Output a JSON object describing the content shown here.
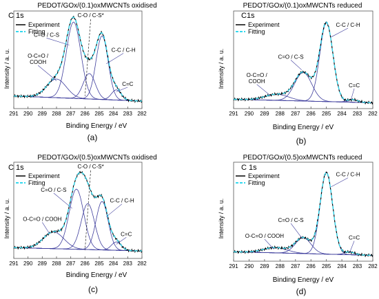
{
  "panels": [
    {
      "letter": "(a)",
      "title": "PEDOT/GOx/(0.1)oxMWCNTs oxidised",
      "region": "C 1s",
      "chart_data": {
        "type": "line",
        "xlabel": "Binding Energy / eV",
        "ylabel": "Intensity / a. u.",
        "xlim": [
          291,
          282
        ],
        "x_reversed": true,
        "xticks": [
          "291",
          "290",
          "289",
          "288",
          "287",
          "286",
          "285",
          "284",
          "283",
          "282"
        ],
        "legend": [
          "Experiment",
          "Fitting"
        ],
        "legend_position": "top-left",
        "ymax": 1.07,
        "background": {
          "left": 0.1,
          "right": 0.04
        },
        "peaks": [
          {
            "label": "O-C=O / COOH",
            "center": 288.0,
            "height": 0.22,
            "fwhm": 1.6
          },
          {
            "label": "C=O / C-S",
            "center": 286.8,
            "height": 0.9,
            "fwhm": 1.2
          },
          {
            "label": "C-O / C-S*",
            "center": 285.7,
            "height": 0.3,
            "fwhm": 1.0
          },
          {
            "label": "C-C / C-H",
            "center": 284.8,
            "height": 0.75,
            "fwhm": 1.0
          },
          {
            "label": "C=C",
            "center": 283.8,
            "height": 0.12,
            "fwhm": 0.8
          }
        ],
        "annotations": [
          {
            "text": "O-C=O /\nCOOH",
            "x": 289.3,
            "y": 0.55,
            "to": [
              288.0,
              0.28
            ]
          },
          {
            "text": "C=O / C-S",
            "x": 288.7,
            "y": 0.8,
            "to": [
              287.1,
              0.7
            ]
          },
          {
            "text": "C-O / C-S*",
            "x": 285.6,
            "y": 1.03,
            "to": [
              286.0,
              0.1
            ],
            "dashed": true
          },
          {
            "text": "C-C / C-H",
            "x": 283.3,
            "y": 0.62,
            "to": [
              284.5,
              0.48
            ]
          },
          {
            "text": "C=C",
            "x": 283.0,
            "y": 0.22,
            "to": [
              283.8,
              0.15
            ]
          }
        ]
      }
    },
    {
      "letter": "(b)",
      "title": "PEDOT/GOx/(0.1)oxMWCNTs reduced",
      "region": "C1s",
      "chart_data": {
        "type": "line",
        "xlabel": "Binding Energy / eV",
        "ylabel": "Intensity / a. u.",
        "xlim": [
          291,
          282
        ],
        "x_reversed": true,
        "xticks": [
          "291",
          "290",
          "289",
          "288",
          "287",
          "286",
          "285",
          "284",
          "283",
          "282"
        ],
        "legend": [
          "Experiment",
          "Fitting"
        ],
        "legend_position": "top-left",
        "ymax": 1.05,
        "background": {
          "left": 0.06,
          "right": 0.02
        },
        "peaks": [
          {
            "label": "O-C=O / COOH",
            "center": 288.2,
            "height": 0.07,
            "fwhm": 1.8
          },
          {
            "label": "C=O / C-S",
            "center": 286.5,
            "height": 0.33,
            "fwhm": 1.3
          },
          {
            "label": "C-C / C-H",
            "center": 285.0,
            "height": 0.91,
            "fwhm": 1.0
          },
          {
            "label": "C=C",
            "center": 283.3,
            "height": 0.03,
            "fwhm": 0.8
          }
        ],
        "annotations": [
          {
            "text": "O-C=O /\nCOOH",
            "x": 289.5,
            "y": 0.32,
            "to": [
              288.6,
              0.1
            ]
          },
          {
            "text": "C=O / C-S",
            "x": 287.3,
            "y": 0.53,
            "to": [
              286.6,
              0.4
            ]
          },
          {
            "text": "C-C / C-H",
            "x": 283.6,
            "y": 0.9,
            "to": [
              284.7,
              0.78
            ]
          },
          {
            "text": "C=C",
            "x": 283.2,
            "y": 0.2,
            "to": [
              283.4,
              0.06
            ]
          }
        ]
      }
    },
    {
      "letter": "(c)",
      "title": "PEDOT/GOx/(0.5)oxMWCNTs oxidised",
      "region": "C 1s",
      "chart_data": {
        "type": "line",
        "xlabel": "Binding Energy / eV",
        "ylabel": "Intensity / a. u.",
        "xlim": [
          291,
          282
        ],
        "x_reversed": true,
        "xticks": [
          "291",
          "290",
          "289",
          "288",
          "287",
          "286",
          "285",
          "284",
          "283",
          "282"
        ],
        "legend": [
          "Experiment",
          "Fitting"
        ],
        "legend_position": "top-left",
        "ymax": 1.07,
        "background": {
          "left": 0.08,
          "right": 0.04
        },
        "peaks": [
          {
            "label": "O-C=O / COOH",
            "center": 288.2,
            "height": 0.2,
            "fwhm": 1.7
          },
          {
            "label": "C=O / C-S",
            "center": 286.6,
            "height": 0.72,
            "fwhm": 1.2
          },
          {
            "label": "C-O / C-S*",
            "center": 285.8,
            "height": 0.55,
            "fwhm": 1.1
          },
          {
            "label": "C-C / C-H",
            "center": 284.8,
            "height": 0.58,
            "fwhm": 1.0
          },
          {
            "label": "C=C",
            "center": 283.8,
            "height": 0.1,
            "fwhm": 0.8
          }
        ],
        "annotations": [
          {
            "text": "O-C=O / COOH",
            "x": 289.0,
            "y": 0.4,
            "to": [
              288.5,
              0.25
            ]
          },
          {
            "text": "C=O / C-S",
            "x": 288.2,
            "y": 0.75,
            "to": [
              286.9,
              0.55
            ]
          },
          {
            "text": "C-O / C-S*",
            "x": 285.6,
            "y": 1.03,
            "to": [
              286.0,
              0.05
            ],
            "dashed": true
          },
          {
            "text": "C-C / C-H",
            "x": 283.4,
            "y": 0.62,
            "to": [
              284.5,
              0.45
            ]
          },
          {
            "text": "C=C",
            "x": 283.1,
            "y": 0.22,
            "to": [
              283.8,
              0.12
            ]
          }
        ]
      }
    },
    {
      "letter": "(d)",
      "title": "PEDOT/GOx/(0.5)oxMWCNTs reduced",
      "region": "C 1s",
      "chart_data": {
        "type": "line",
        "xlabel": "Binding Energy / eV",
        "ylabel": "Intensity / a. u.",
        "xlim": [
          291,
          282
        ],
        "x_reversed": true,
        "xticks": [
          "291",
          "290",
          "289",
          "288",
          "287",
          "286",
          "285",
          "284",
          "283",
          "282"
        ],
        "legend": [
          "Experiment",
          "Fitting"
        ],
        "legend_position": "top-left",
        "ymax": 1.05,
        "background": {
          "left": 0.06,
          "right": 0.02
        },
        "peaks": [
          {
            "label": "O-C=O / COOH",
            "center": 288.3,
            "height": 0.06,
            "fwhm": 1.8
          },
          {
            "label": "C=O / C-S",
            "center": 286.5,
            "height": 0.18,
            "fwhm": 1.2
          },
          {
            "label": "C-C / C-H",
            "center": 285.0,
            "height": 0.93,
            "fwhm": 0.95
          },
          {
            "label": "C=C",
            "center": 283.5,
            "height": 0.03,
            "fwhm": 0.8
          }
        ],
        "annotations": [
          {
            "text": "O-C=O / COOH",
            "x": 289.0,
            "y": 0.22,
            "to": [
              288.4,
              0.09
            ]
          },
          {
            "text": "C=O / C-S",
            "x": 287.3,
            "y": 0.4,
            "to": [
              286.6,
              0.22
            ]
          },
          {
            "text": "C-C / C-H",
            "x": 283.6,
            "y": 0.92,
            "to": [
              284.7,
              0.8
            ]
          },
          {
            "text": "C=C",
            "x": 283.2,
            "y": 0.2,
            "to": [
              283.5,
              0.05
            ]
          }
        ]
      }
    }
  ],
  "colors": {
    "experiment": "#000000",
    "fitting": "#33d8ee",
    "component": "#3d3c9c",
    "frame": "#555555"
  }
}
